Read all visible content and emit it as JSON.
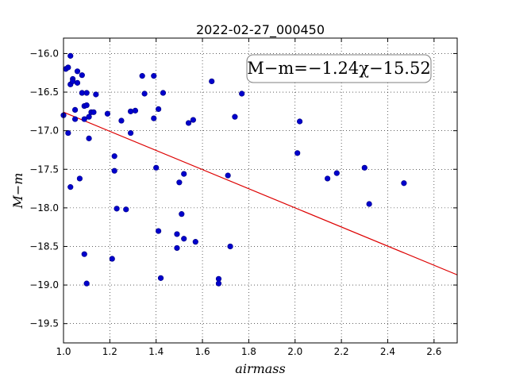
{
  "chart_data": {
    "type": "scatter",
    "title": "2022-02-27_000450",
    "xlabel": "airmass",
    "ylabel": "M−m",
    "xlim": [
      1.0,
      2.7
    ],
    "ylim": [
      -19.75,
      -15.8
    ],
    "y_inverted": false,
    "x_ticks": [
      1.0,
      1.2,
      1.4,
      1.6,
      1.8,
      2.0,
      2.2,
      2.4,
      2.6
    ],
    "x_tick_labels": [
      "1.0",
      "1.2",
      "1.4",
      "1.6",
      "1.8",
      "2.0",
      "2.2",
      "2.4",
      "2.6"
    ],
    "y_ticks": [
      -16.0,
      -16.5,
      -17.0,
      -17.5,
      -18.0,
      -18.5,
      -19.0,
      -19.5
    ],
    "y_tick_labels": [
      "−16.0",
      "−16.5",
      "−17.0",
      "−17.5",
      "−18.0",
      "−18.5",
      "−19.0",
      "−19.5"
    ],
    "grid": true,
    "point_color": "#0000cc",
    "fit_line_color": "#dd0000",
    "fit": {
      "slope": -1.24,
      "intercept": -15.52
    },
    "annotation": "M−m=−1.24χ−15.52",
    "points": [
      [
        1.0,
        -16.8
      ],
      [
        1.01,
        -16.2
      ],
      [
        1.02,
        -16.18
      ],
      [
        1.03,
        -16.03
      ],
      [
        1.03,
        -16.4
      ],
      [
        1.04,
        -16.33
      ],
      [
        1.04,
        -16.36
      ],
      [
        1.05,
        -16.85
      ],
      [
        1.05,
        -16.73
      ],
      [
        1.06,
        -16.23
      ],
      [
        1.06,
        -16.38
      ],
      [
        1.08,
        -16.28
      ],
      [
        1.08,
        -16.51
      ],
      [
        1.09,
        -16.68
      ],
      [
        1.09,
        -16.85
      ],
      [
        1.1,
        -16.67
      ],
      [
        1.1,
        -16.51
      ],
      [
        1.11,
        -16.82
      ],
      [
        1.12,
        -16.76
      ],
      [
        1.13,
        -16.76
      ],
      [
        1.14,
        -16.53
      ],
      [
        1.02,
        -17.03
      ],
      [
        1.03,
        -17.73
      ],
      [
        1.07,
        -17.62
      ],
      [
        1.09,
        -18.6
      ],
      [
        1.1,
        -18.98
      ],
      [
        1.11,
        -17.1
      ],
      [
        1.19,
        -16.78
      ],
      [
        1.21,
        -18.66
      ],
      [
        1.22,
        -17.33
      ],
      [
        1.22,
        -17.52
      ],
      [
        1.23,
        -18.01
      ],
      [
        1.25,
        -16.87
      ],
      [
        1.27,
        -18.02
      ],
      [
        1.29,
        -16.75
      ],
      [
        1.29,
        -17.03
      ],
      [
        1.31,
        -16.74
      ],
      [
        1.34,
        -16.29
      ],
      [
        1.35,
        -16.52
      ],
      [
        1.39,
        -16.29
      ],
      [
        1.39,
        -16.84
      ],
      [
        1.4,
        -17.48
      ],
      [
        1.41,
        -16.72
      ],
      [
        1.41,
        -18.3
      ],
      [
        1.42,
        -18.91
      ],
      [
        1.43,
        -16.51
      ],
      [
        1.49,
        -18.34
      ],
      [
        1.49,
        -18.52
      ],
      [
        1.5,
        -17.67
      ],
      [
        1.51,
        -18.08
      ],
      [
        1.52,
        -17.56
      ],
      [
        1.52,
        -18.4
      ],
      [
        1.54,
        -16.9
      ],
      [
        1.56,
        -16.86
      ],
      [
        1.57,
        -18.44
      ],
      [
        1.64,
        -16.36
      ],
      [
        1.67,
        -18.92
      ],
      [
        1.67,
        -18.98
      ],
      [
        1.71,
        -17.58
      ],
      [
        1.72,
        -18.5
      ],
      [
        1.74,
        -16.82
      ],
      [
        1.77,
        -16.52
      ],
      [
        2.01,
        -17.29
      ],
      [
        2.02,
        -16.88
      ],
      [
        2.14,
        -17.62
      ],
      [
        2.18,
        -17.55
      ],
      [
        2.3,
        -17.48
      ],
      [
        2.32,
        -17.95
      ],
      [
        2.47,
        -17.68
      ]
    ]
  }
}
